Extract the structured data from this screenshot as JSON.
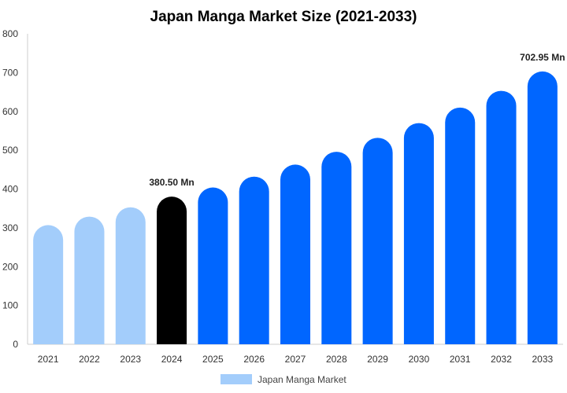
{
  "chart_data": {
    "type": "bar",
    "title": "Japan Manga Market Size (2021-2033)",
    "xlabel": "",
    "ylabel": "",
    "ylim": [
      0,
      800
    ],
    "yticks": [
      0,
      100,
      200,
      300,
      400,
      500,
      600,
      700,
      800
    ],
    "grid": false,
    "legend": {
      "position": "bottom",
      "entries": [
        "Japan Manga Market"
      ]
    },
    "categories": [
      "2021",
      "2022",
      "2023",
      "2024",
      "2025",
      "2026",
      "2027",
      "2028",
      "2029",
      "2030",
      "2031",
      "2032",
      "2033"
    ],
    "series": [
      {
        "name": "Japan Manga Market",
        "values": [
          307,
          329,
          353,
          380.5,
          404,
          432,
          463,
          496,
          532,
          570,
          610,
          653,
          702.95
        ]
      }
    ],
    "bar_colors": [
      "#a3cdfb",
      "#a3cdfb",
      "#a3cdfb",
      "#000000",
      "#0066ff",
      "#0066ff",
      "#0066ff",
      "#0066ff",
      "#0066ff",
      "#0066ff",
      "#0066ff",
      "#0066ff",
      "#0066ff"
    ],
    "legend_color": "#a3cdfb",
    "data_labels": [
      {
        "index": 3,
        "text": "380.50 Mn"
      },
      {
        "index": 12,
        "text": "702.95 Mn"
      }
    ]
  }
}
